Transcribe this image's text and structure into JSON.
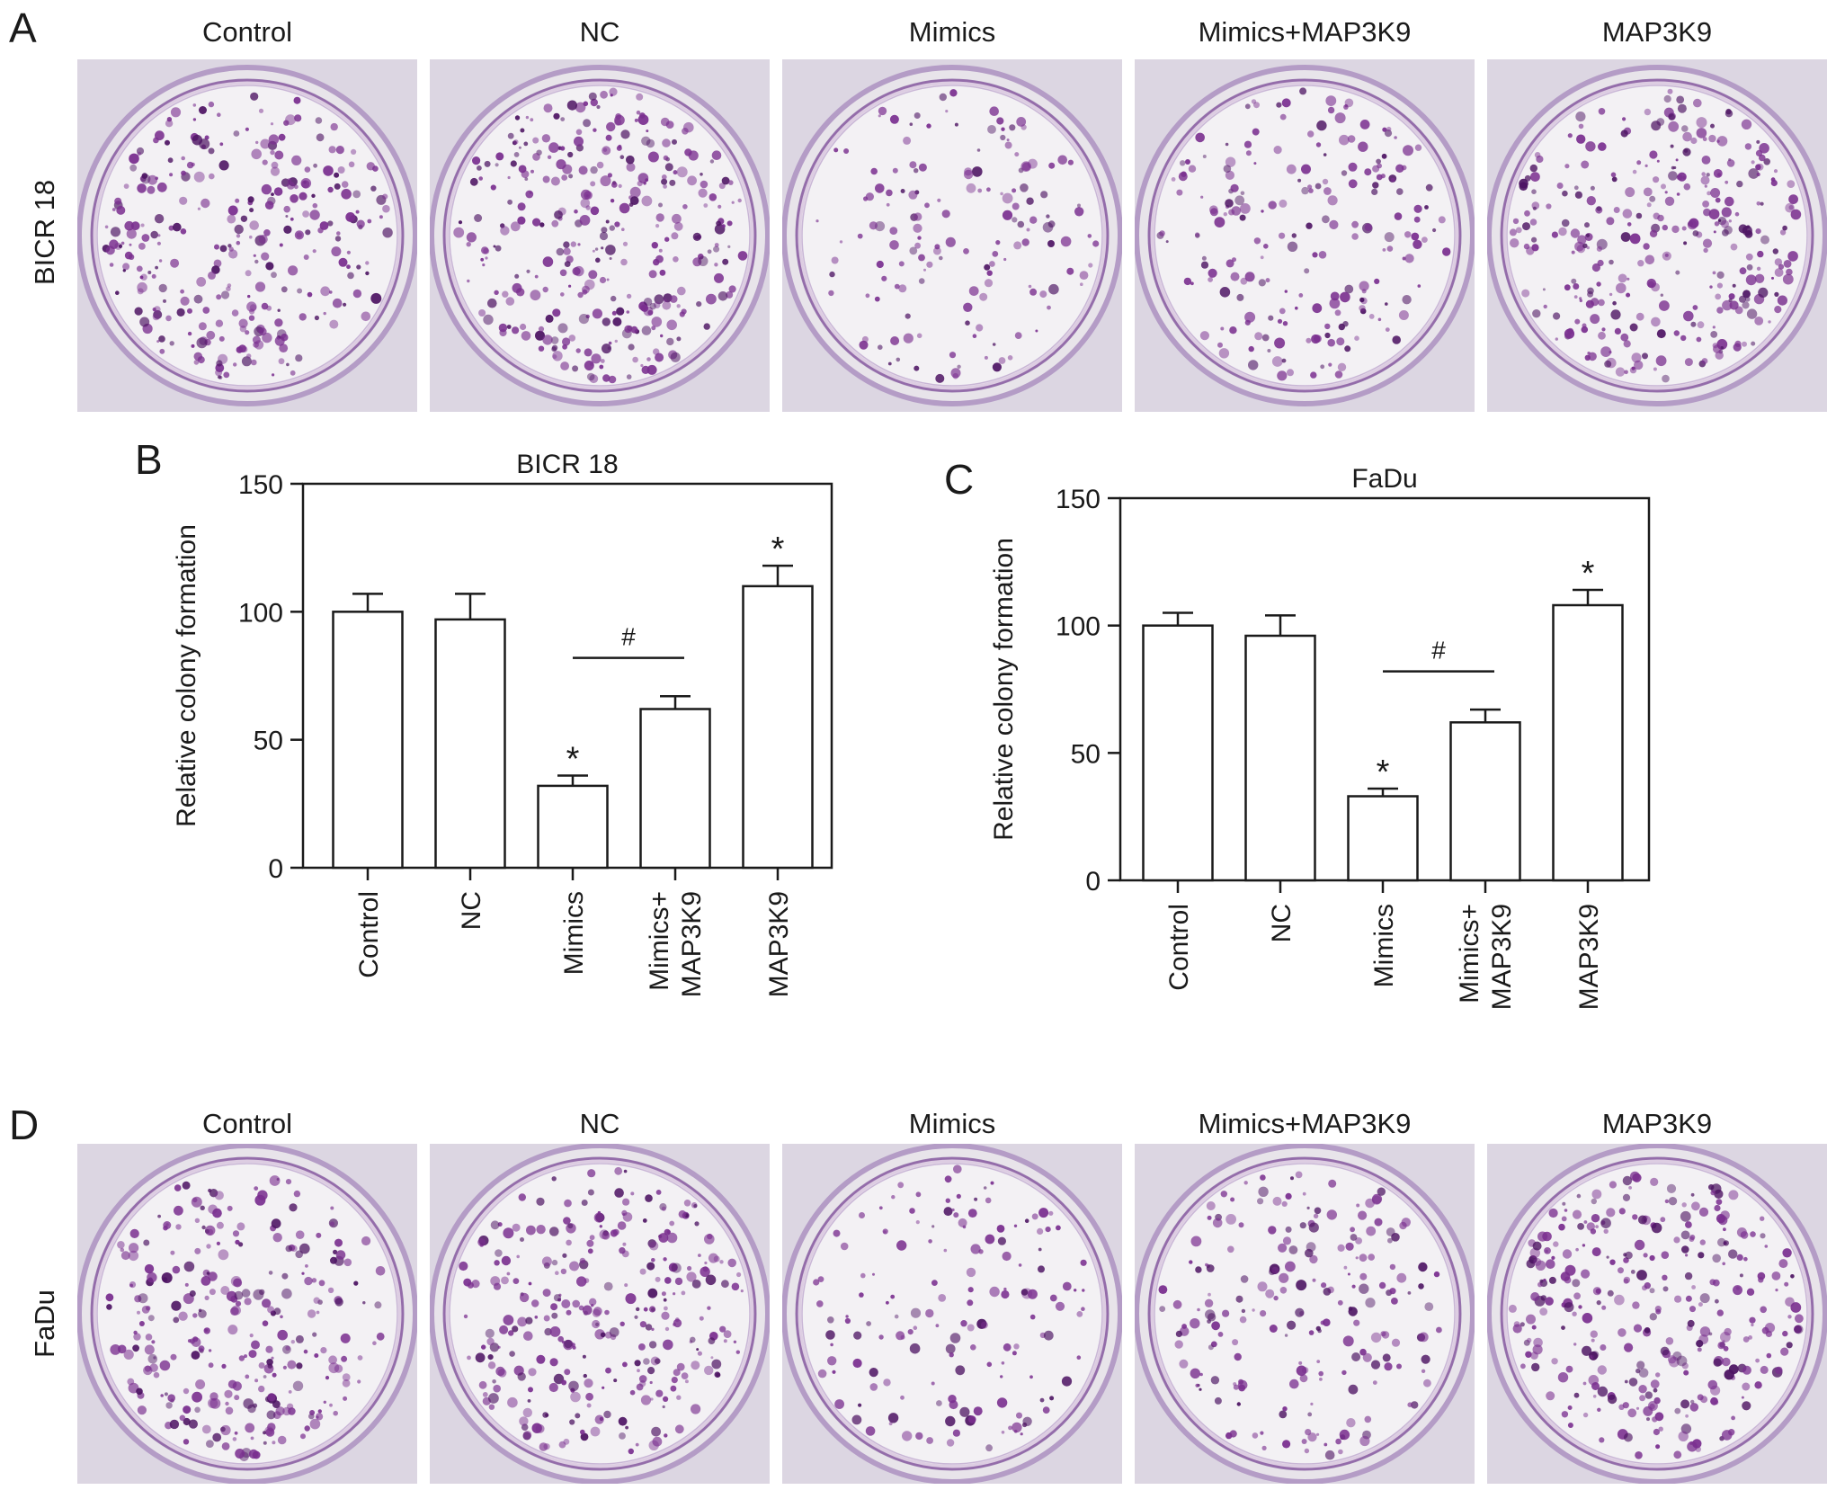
{
  "panels": {
    "A": {
      "letter": "A",
      "row_label": "BICR 18",
      "columns": [
        "Control",
        "NC",
        "Mimics",
        "Mimics+MAP3K9",
        "MAP3K9"
      ],
      "colony_density": [
        0.9,
        1.0,
        0.45,
        0.6,
        0.95
      ]
    },
    "D": {
      "letter": "D",
      "row_label": "FaDu",
      "columns": [
        "Control",
        "NC",
        "Mimics",
        "Mimics+MAP3K9",
        "MAP3K9"
      ],
      "colony_density": [
        0.85,
        0.9,
        0.45,
        0.6,
        0.95
      ]
    },
    "B": {
      "letter": "B"
    },
    "C": {
      "letter": "C"
    }
  },
  "colors": {
    "stain": "#7a2f8f",
    "stain_dark": "#4d1463",
    "plate_bg": "#e8e4ea",
    "plate_inner": "#f3f1f4",
    "plate_rim": "#9a7bb0",
    "axis": "#1a1a1a",
    "bar_fill": "#ffffff"
  },
  "chart_data": [
    {
      "type": "bar",
      "title": "BICR 18",
      "ylabel": "Relative colony formation",
      "xlabel": "",
      "ylim": [
        0,
        150
      ],
      "yticks": [
        0,
        50,
        100,
        150
      ],
      "categories": [
        [
          "Control"
        ],
        [
          "NC"
        ],
        [
          "Mimics"
        ],
        [
          "Mimics+",
          "MAP3K9"
        ],
        [
          "MAP3K9"
        ]
      ],
      "values": [
        100,
        97,
        32,
        62,
        110
      ],
      "errors": [
        7,
        10,
        4,
        5,
        8
      ],
      "markers": [
        "",
        "",
        "*",
        "",
        "*"
      ],
      "comparison": {
        "from": 2,
        "to": 3,
        "label": "#"
      }
    },
    {
      "type": "bar",
      "title": "FaDu",
      "ylabel": "Relative colony formation",
      "xlabel": "",
      "ylim": [
        0,
        150
      ],
      "yticks": [
        0,
        50,
        100,
        150
      ],
      "categories": [
        [
          "Control"
        ],
        [
          "NC"
        ],
        [
          "Mimics"
        ],
        [
          "Mimics+",
          "MAP3K9"
        ],
        [
          "MAP3K9"
        ]
      ],
      "values": [
        100,
        96,
        33,
        62,
        108
      ],
      "errors": [
        5,
        8,
        3,
        5,
        6
      ],
      "markers": [
        "",
        "",
        "*",
        "",
        "*"
      ],
      "comparison": {
        "from": 2,
        "to": 3,
        "label": "#"
      }
    }
  ]
}
